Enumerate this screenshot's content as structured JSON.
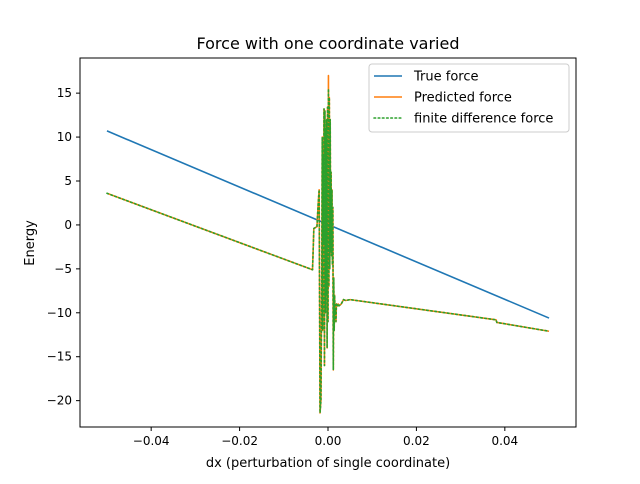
{
  "chart_data": {
    "type": "line",
    "title": "Force with one coordinate varied",
    "xlabel": "dx (perturbation of single coordinate)",
    "ylabel": "Energy",
    "xlim": [
      -0.0561,
      0.0561
    ],
    "ylim": [
      -23.0,
      19.0
    ],
    "xticks": [
      -0.04,
      -0.02,
      0.0,
      0.02,
      0.04
    ],
    "xtick_labels": [
      "−0.04",
      "−0.02",
      "0.00",
      "0.02",
      "0.04"
    ],
    "yticks": [
      -20,
      -15,
      -10,
      -5,
      0,
      5,
      10,
      15
    ],
    "ytick_labels": [
      "−20",
      "−15",
      "−10",
      "−5",
      "0",
      "5",
      "10",
      "15"
    ],
    "grid": false,
    "legend_position": "upper right",
    "colors": {
      "true_force": "#1f77b4",
      "predicted_force": "#ff7f0e",
      "finite_difference_force": "#2ca02c"
    },
    "series": [
      {
        "name": "True force",
        "style": "solid",
        "x": [
          -0.05,
          0.05
        ],
        "y": [
          10.7,
          -10.6
        ]
      },
      {
        "name": "Predicted force",
        "style": "solid",
        "x": [
          -0.05,
          -0.0035,
          -0.0032,
          -0.0025,
          -0.0022,
          -0.002,
          -0.0018,
          -0.0016,
          -0.0014,
          -0.0013,
          -0.0012,
          -0.0011,
          -0.001,
          -0.0009,
          -0.0008,
          -0.0007,
          -0.0006,
          -0.0005,
          -0.0004,
          -0.0003,
          -0.0002,
          -0.0001,
          0.0,
          0.0001,
          0.0002,
          0.0003,
          0.0004,
          0.0005,
          0.0006,
          0.0007,
          0.0008,
          0.0009,
          0.001,
          0.0011,
          0.0012,
          0.0013,
          0.0014,
          0.0015,
          0.0016,
          0.0017,
          0.0018,
          0.0019,
          0.002,
          0.0021,
          0.0022,
          0.0023,
          0.0025,
          0.003,
          0.0035,
          0.004,
          0.005,
          0.038,
          0.0382,
          0.05
        ],
        "y": [
          3.6,
          -5.1,
          -0.4,
          -0.2,
          2.6,
          4.0,
          -21.4,
          -20.0,
          -5.0,
          10.0,
          -12.0,
          8.0,
          -2.0,
          13.2,
          -16.0,
          13.0,
          -10.0,
          11.0,
          -8.0,
          12.0,
          -14.0,
          13.4,
          -11.0,
          17.0,
          -7.0,
          14.5,
          -5.0,
          12.0,
          -3.0,
          6.0,
          -3.5,
          4.0,
          -4.5,
          2.0,
          -16.5,
          -6.0,
          -12.0,
          -8.0,
          -10.0,
          -9.5,
          -11.0,
          -9.0,
          -9.2,
          -9.1,
          -9.2,
          -9.0,
          -9.2,
          -9.0,
          -8.5,
          -8.6,
          -8.5,
          -10.8,
          -11.1,
          -12.1
        ]
      },
      {
        "name": "finite difference force",
        "style": "dotted",
        "x": [
          -0.05,
          -0.0035,
          -0.0032,
          -0.0025,
          -0.0022,
          -0.002,
          -0.0018,
          -0.0016,
          -0.0014,
          -0.0013,
          -0.0012,
          -0.0011,
          -0.001,
          -0.0009,
          -0.0008,
          -0.0007,
          -0.0006,
          -0.0005,
          -0.0004,
          -0.0003,
          -0.0002,
          -0.0001,
          0.0,
          0.0001,
          0.0002,
          0.0003,
          0.0004,
          0.0005,
          0.0006,
          0.0007,
          0.0008,
          0.0009,
          0.001,
          0.0011,
          0.0012,
          0.0013,
          0.0014,
          0.0015,
          0.0016,
          0.0017,
          0.0018,
          0.0019,
          0.002,
          0.0021,
          0.0022,
          0.0023,
          0.0025,
          0.003,
          0.0035,
          0.004,
          0.005,
          0.038,
          0.0382,
          0.05
        ],
        "y": [
          3.6,
          -5.1,
          -0.4,
          -0.2,
          2.6,
          4.0,
          -21.4,
          -20.0,
          -5.0,
          10.0,
          -12.0,
          8.0,
          -2.0,
          13.2,
          -16.0,
          13.0,
          -10.0,
          11.0,
          -8.0,
          12.0,
          -14.0,
          13.4,
          -11.0,
          15.5,
          -7.0,
          14.5,
          -5.0,
          12.0,
          -3.0,
          6.0,
          -3.5,
          4.0,
          -4.5,
          2.0,
          -16.5,
          -6.0,
          -12.0,
          -8.0,
          -10.0,
          -9.5,
          -11.0,
          -9.0,
          -9.2,
          -9.1,
          -9.2,
          -9.0,
          -9.2,
          -9.0,
          -8.5,
          -8.6,
          -8.5,
          -10.8,
          -11.1,
          -12.1
        ]
      }
    ]
  }
}
